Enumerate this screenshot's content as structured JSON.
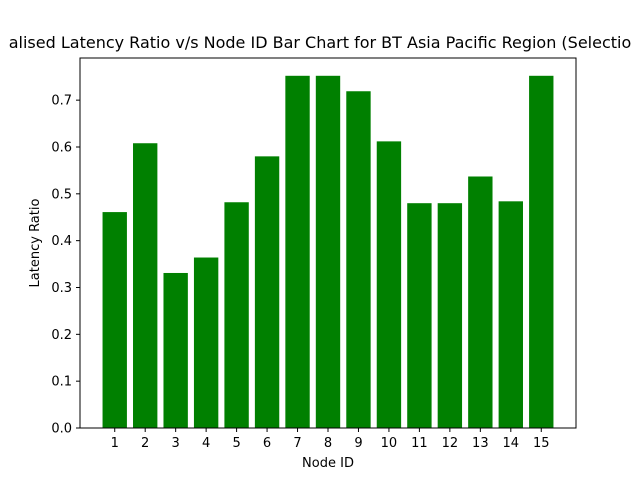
{
  "chart_data": {
    "type": "bar",
    "title": "alised Latency Ratio v/s Node ID Bar Chart for BT Asia Pacific Region (Selectio",
    "xlabel": "Node ID",
    "ylabel": "Latency Ratio",
    "categories": [
      "1",
      "2",
      "3",
      "4",
      "5",
      "6",
      "7",
      "8",
      "9",
      "10",
      "11",
      "12",
      "13",
      "14",
      "15"
    ],
    "values": [
      0.461,
      0.608,
      0.331,
      0.364,
      0.482,
      0.58,
      0.752,
      0.752,
      0.719,
      0.612,
      0.48,
      0.48,
      0.537,
      0.484,
      0.752
    ],
    "ylim": [
      0,
      0.79
    ],
    "yticks": [
      "0.0",
      "0.1",
      "0.2",
      "0.3",
      "0.4",
      "0.5",
      "0.6",
      "0.7"
    ],
    "bar_color": "#008000",
    "grid": false,
    "legend": "none"
  }
}
